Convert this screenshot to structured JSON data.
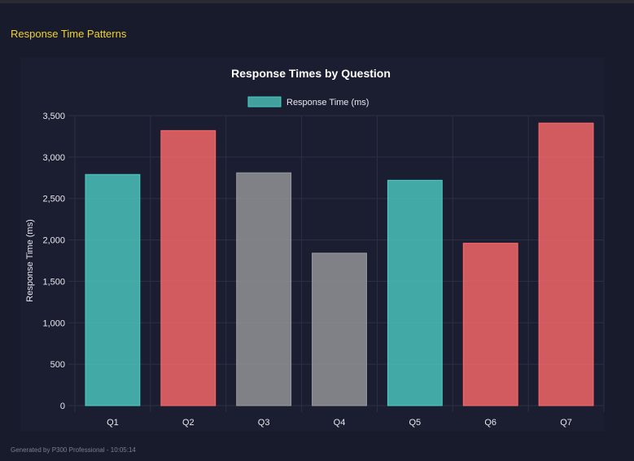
{
  "section_title": "Response Time Patterns",
  "footer": "Generated by P300 Professional - 10:05:14",
  "chart_data": {
    "type": "bar",
    "title": "Response Times by Question",
    "xlabel": "",
    "ylabel": "Response Time (ms)",
    "legend": {
      "label": "Response Time (ms)",
      "placement": "top",
      "color": "#4ecdc4"
    },
    "categories": [
      "Q1",
      "Q2",
      "Q3",
      "Q4",
      "Q5",
      "Q6",
      "Q7"
    ],
    "values": [
      2790,
      3320,
      2810,
      1840,
      2720,
      1960,
      3410
    ],
    "bar_colors": [
      "#4ecdc4",
      "#ff6b6b",
      "#9a9a9e",
      "#9a9a9e",
      "#4ecdc4",
      "#ff6b6b",
      "#ff6b6b"
    ],
    "ylim": [
      0,
      3500
    ],
    "yticks": [
      "0",
      "500",
      "1,000",
      "1,500",
      "2,000",
      "2,500",
      "3,000",
      "3,500"
    ],
    "grid": true
  }
}
